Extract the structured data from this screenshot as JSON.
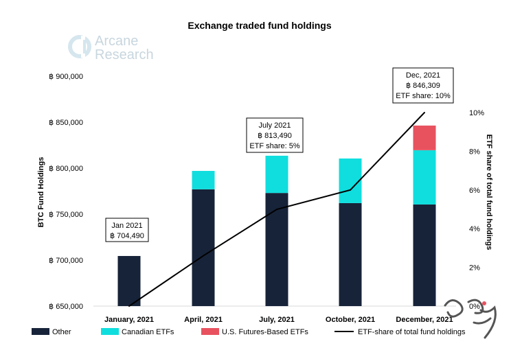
{
  "chart_data": {
    "type": "bar",
    "title": "Exchange traded fund holdings",
    "logo": "Arcane Research",
    "categories": [
      "January, 2021",
      "April, 2021",
      "July, 2021",
      "October, 2021",
      "December, 2021"
    ],
    "stack_series": [
      {
        "name": "Other",
        "color": "#172339",
        "values": [
          704490,
          777000,
          773000,
          762000,
          760500
        ]
      },
      {
        "name": "Canadian ETFs",
        "color": "#10dede",
        "values": [
          0,
          20000,
          40490,
          48500,
          59000
        ]
      },
      {
        "name": "U.S. Futures-Based ETFs",
        "color": "#e8525f",
        "values": [
          0,
          0,
          0,
          0,
          26809
        ]
      }
    ],
    "line_series": {
      "name": "ETF-share of total fund holdings",
      "color": "#000000",
      "unit": "%",
      "values": [
        0,
        2.6,
        5,
        6,
        10
      ]
    },
    "ylabel": "BTC Fund Holdings",
    "y2label": "ETF share of total fund holdings",
    "ylim": [
      650000,
      900000
    ],
    "y2lim": [
      0,
      10
    ],
    "yticks": [
      "฿ 650,000",
      "฿ 700,000",
      "฿ 750,000",
      "฿ 800,000",
      "฿ 850,000",
      "฿ 900,000"
    ],
    "y2ticks": [
      "0%",
      "2%",
      "4%",
      "6%",
      "8%",
      "10%"
    ],
    "annotations": [
      {
        "index": 0,
        "lines": [
          "Jan 2021",
          "฿ 704,490"
        ]
      },
      {
        "index": 2,
        "lines": [
          "July 2021",
          "฿ 813,490",
          "ETF share: 5%"
        ]
      },
      {
        "index": 4,
        "lines": [
          "Dec, 2021",
          "฿ 846,309",
          "ETF share: 10%"
        ]
      }
    ],
    "grid": false,
    "legend_position": "bottom"
  }
}
